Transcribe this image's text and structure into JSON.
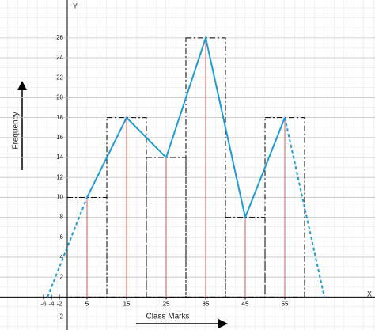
{
  "chart_data": {
    "type": "histogram",
    "x_axis_name": "X",
    "y_axis_name": "Y",
    "xlabel": "Class Marks",
    "ylabel": "Frequency",
    "bins": [
      0,
      10,
      20,
      30,
      40,
      50,
      60
    ],
    "values": [
      10,
      18,
      14,
      26,
      8,
      18
    ],
    "class_marks": [
      5,
      15,
      25,
      35,
      45,
      55
    ],
    "polygon": {
      "x": [
        -5,
        5,
        15,
        25,
        35,
        45,
        55,
        65
      ],
      "values": [
        0,
        10,
        18,
        14,
        26,
        8,
        18,
        0
      ],
      "color": "#1e9ad6"
    },
    "bar_color": "#000000",
    "mark_color": "#e05050",
    "xlim": [
      -17,
      77.8
    ],
    "ylim": [
      -3.3,
      29.8
    ],
    "xticks": [
      -6,
      -4,
      -2,
      5,
      15,
      25,
      35,
      45,
      55
    ],
    "yticks": [
      -2,
      2,
      4,
      6,
      8,
      10,
      12,
      14,
      16,
      18,
      20,
      22,
      24,
      26
    ],
    "grid": true
  }
}
